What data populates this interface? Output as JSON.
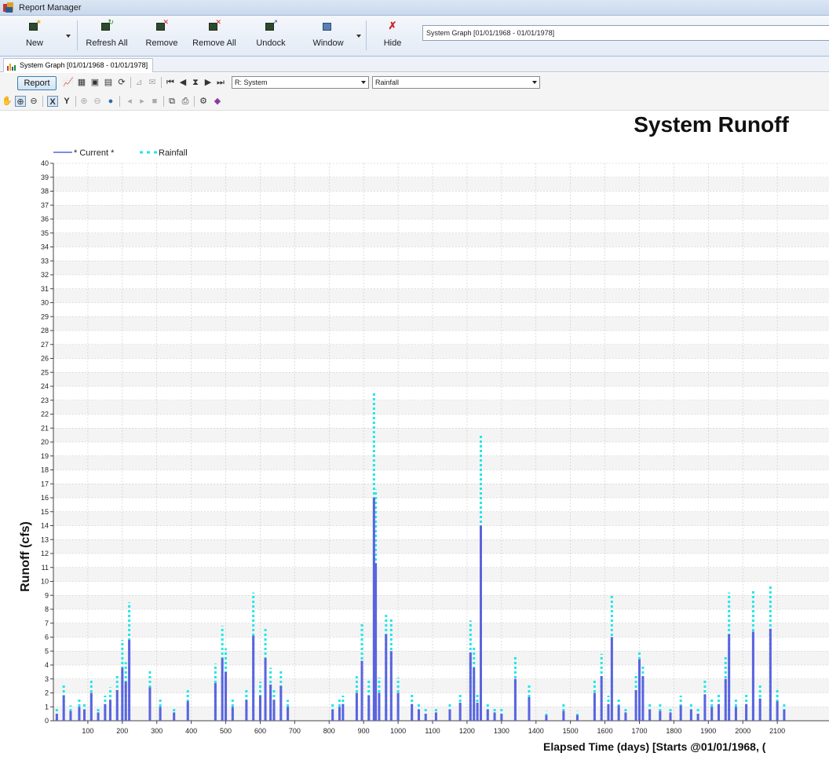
{
  "window": {
    "title": "Report Manager"
  },
  "ribbon": {
    "new_label": "New",
    "refresh_all_label": "Refresh All",
    "remove_label": "Remove",
    "remove_all_label": "Remove All",
    "undock_label": "Undock",
    "window_label": "Window",
    "hide_label": "Hide",
    "graph_select_value": "System Graph [01/01/1968 - 01/01/1978]"
  },
  "doc_tab": {
    "label": "System Graph [01/01/1968 - 01/01/1978]"
  },
  "toolbar": {
    "report_label": "Report",
    "system_combo_value": "R: System",
    "variable_combo_value": "Rainfall"
  },
  "colors": {
    "current": "#5b63e0",
    "rainfall": "#22e6ea",
    "grid": "#c8c8c8",
    "band": "#f4f4f4"
  },
  "chart_data": {
    "type": "bar",
    "title": "System Runoff",
    "ylabel": "Runoff (cfs)",
    "xlabel": "Elapsed Time (days) [Starts @01/01/1968, (",
    "ylim": [
      0,
      40
    ],
    "xlim": [
      0,
      2250
    ],
    "grid": true,
    "legend_position": "top-left",
    "y_ticks": [
      "0",
      "1",
      "2",
      "3",
      "4",
      "5",
      "6",
      "7",
      "8",
      "9",
      "10",
      "11",
      "12",
      "13",
      "14",
      "15",
      "16",
      "17",
      "18",
      "19",
      "20",
      "21",
      "22",
      "23",
      "24",
      "25",
      "26",
      "27",
      "28",
      "29",
      "30",
      "31",
      "32",
      "33",
      "34",
      "35",
      "36",
      "37",
      "38",
      "39",
      "40"
    ],
    "x_ticks": [
      "100",
      "200",
      "300",
      "400",
      "500",
      "600",
      "700",
      "800",
      "900",
      "1000",
      "1100",
      "1200",
      "1300",
      "1400",
      "1500",
      "1600",
      "1700",
      "1800",
      "1900",
      "2000",
      "2100"
    ],
    "series": [
      {
        "name": "* Current *",
        "style": "solid",
        "x": [
          10,
          30,
          50,
          75,
          90,
          110,
          130,
          150,
          165,
          185,
          200,
          210,
          220,
          280,
          310,
          350,
          390,
          470,
          490,
          500,
          520,
          560,
          580,
          600,
          615,
          630,
          640,
          660,
          680,
          810,
          830,
          840,
          880,
          895,
          915,
          930,
          935,
          945,
          965,
          980,
          1000,
          1040,
          1060,
          1080,
          1110,
          1150,
          1180,
          1210,
          1220,
          1230,
          1240,
          1260,
          1280,
          1300,
          1340,
          1380,
          1430,
          1480,
          1520,
          1570,
          1590,
          1610,
          1620,
          1640,
          1660,
          1690,
          1700,
          1710,
          1730,
          1760,
          1790,
          1820,
          1850,
          1870,
          1890,
          1910,
          1930,
          1950,
          1960,
          1980,
          2010,
          2030,
          2050,
          2080,
          2100,
          2120
        ],
        "values": [
          0.5,
          1.8,
          0.7,
          1.0,
          0.8,
          2.0,
          0.6,
          1.2,
          1.5,
          2.2,
          3.8,
          2.8,
          5.8,
          2.4,
          1.0,
          0.6,
          1.4,
          2.7,
          4.5,
          3.5,
          1.0,
          1.5,
          6.1,
          1.8,
          4.5,
          2.6,
          1.5,
          2.5,
          1.0,
          0.8,
          1.0,
          1.2,
          2.0,
          4.3,
          1.8,
          16.0,
          11.3,
          2.0,
          6.2,
          5.0,
          2.0,
          1.2,
          0.8,
          0.5,
          0.6,
          0.8,
          1.3,
          4.9,
          3.8,
          1.3,
          14.0,
          0.8,
          0.6,
          0.5,
          3.0,
          1.7,
          0.4,
          0.7,
          0.4,
          2.0,
          3.2,
          1.2,
          6.0,
          1.1,
          0.6,
          2.2,
          4.4,
          3.2,
          0.8,
          0.7,
          0.6,
          1.1,
          0.8,
          0.5,
          1.9,
          1.0,
          1.2,
          3.0,
          6.2,
          1.0,
          1.2,
          6.4,
          1.6,
          6.6,
          1.4,
          0.8
        ]
      },
      {
        "name": "Rainfall",
        "style": "dotted",
        "x": [
          10,
          30,
          50,
          75,
          90,
          110,
          130,
          150,
          165,
          185,
          200,
          210,
          220,
          280,
          310,
          350,
          390,
          470,
          490,
          500,
          520,
          560,
          580,
          600,
          615,
          630,
          640,
          660,
          680,
          810,
          830,
          840,
          880,
          895,
          915,
          930,
          935,
          945,
          965,
          980,
          1000,
          1040,
          1060,
          1080,
          1110,
          1150,
          1180,
          1210,
          1220,
          1230,
          1240,
          1260,
          1280,
          1300,
          1340,
          1380,
          1430,
          1480,
          1520,
          1570,
          1590,
          1610,
          1620,
          1640,
          1660,
          1690,
          1700,
          1710,
          1730,
          1760,
          1790,
          1820,
          1850,
          1870,
          1890,
          1910,
          1930,
          1950,
          1960,
          1980,
          2010,
          2030,
          2050,
          2080,
          2100,
          2120
        ],
        "values": [
          0.9,
          2.6,
          1.1,
          1.6,
          1.2,
          2.9,
          1.0,
          1.8,
          2.4,
          3.3,
          5.8,
          4.2,
          8.5,
          3.7,
          1.6,
          0.9,
          2.2,
          4.1,
          6.8,
          5.2,
          1.6,
          2.2,
          9.2,
          2.8,
          6.6,
          3.8,
          2.2,
          3.6,
          1.5,
          1.3,
          1.6,
          1.8,
          3.2,
          7.0,
          2.9,
          23.6,
          16.6,
          3.1,
          7.6,
          7.3,
          3.1,
          1.9,
          1.2,
          0.9,
          1.0,
          1.2,
          2.0,
          7.2,
          5.3,
          2.0,
          20.6,
          1.3,
          1.0,
          0.9,
          4.6,
          2.6,
          0.7,
          1.2,
          0.7,
          3.0,
          4.8,
          1.8,
          9.0,
          1.7,
          1.0,
          3.4,
          4.9,
          3.9,
          1.3,
          1.2,
          1.0,
          1.8,
          1.3,
          0.9,
          2.9,
          1.6,
          1.9,
          4.6,
          9.2,
          1.6,
          1.9,
          9.4,
          2.6,
          9.7,
          2.2,
          1.3
        ]
      }
    ]
  }
}
